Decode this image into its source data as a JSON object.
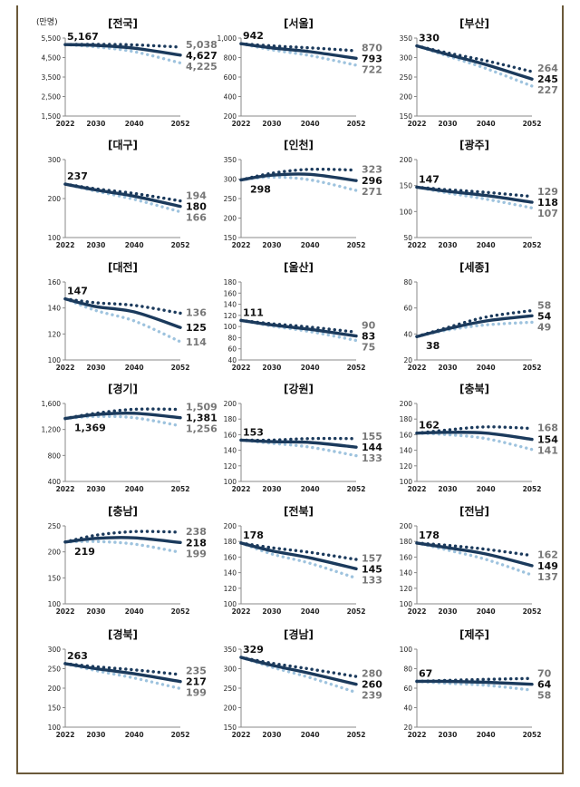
{
  "unit_label": "(만명)",
  "colors": {
    "actual": "#1b3a5c",
    "high": "#1b3a5c",
    "low": "#9ec3de",
    "label_dark": "#111111",
    "label_gray": "#777777",
    "axis": "#888888"
  },
  "chart_data": [
    {
      "type": "line",
      "title": "[전국]",
      "x": [
        2022,
        2030,
        2040,
        2052
      ],
      "xlim": [
        2022,
        2052
      ],
      "ylim": [
        1500,
        5500
      ],
      "yticks": [
        1500,
        2500,
        3500,
        4500,
        5500
      ],
      "ytick_labels": [
        "1,500",
        "2,500",
        "3,500",
        "4,500",
        "5,500"
      ],
      "start_label": "5,167",
      "series": [
        {
          "name": "high",
          "values": [
            5167,
            5180,
            5150,
            5038
          ],
          "end_label": "5,038"
        },
        {
          "name": "mid",
          "values": [
            5167,
            5130,
            4980,
            4627
          ],
          "end_label": "4,627"
        },
        {
          "name": "low",
          "values": [
            5167,
            5050,
            4800,
            4225
          ],
          "end_label": "4,225"
        }
      ]
    },
    {
      "type": "line",
      "title": "[서울]",
      "x": [
        2022,
        2030,
        2040,
        2052
      ],
      "xlim": [
        2022,
        2052
      ],
      "ylim": [
        200,
        1000
      ],
      "yticks": [
        200,
        400,
        600,
        800,
        1000
      ],
      "ytick_labels": [
        "200",
        "400",
        "600",
        "800",
        "1,000"
      ],
      "start_label": "942",
      "series": [
        {
          "name": "high",
          "values": [
            942,
            920,
            900,
            870
          ],
          "end_label": "870"
        },
        {
          "name": "mid",
          "values": [
            942,
            900,
            860,
            793
          ],
          "end_label": "793"
        },
        {
          "name": "low",
          "values": [
            942,
            880,
            820,
            722
          ],
          "end_label": "722"
        }
      ]
    },
    {
      "type": "line",
      "title": "[부산]",
      "x": [
        2022,
        2030,
        2040,
        2052
      ],
      "xlim": [
        2022,
        2052
      ],
      "ylim": [
        150,
        350
      ],
      "yticks": [
        150,
        200,
        250,
        300,
        350
      ],
      "ytick_labels": [
        "150",
        "200",
        "250",
        "300",
        "350"
      ],
      "start_label": "330",
      "series": [
        {
          "name": "high",
          "values": [
            330,
            312,
            292,
            264
          ],
          "end_label": "264"
        },
        {
          "name": "mid",
          "values": [
            330,
            308,
            282,
            245
          ],
          "end_label": "245"
        },
        {
          "name": "low",
          "values": [
            330,
            304,
            272,
            227
          ],
          "end_label": "227"
        }
      ]
    },
    {
      "type": "line",
      "title": "[대구]",
      "x": [
        2022,
        2030,
        2040,
        2052
      ],
      "xlim": [
        2022,
        2052
      ],
      "ylim": [
        100,
        300
      ],
      "yticks": [
        100,
        200,
        300
      ],
      "ytick_labels": [
        "100",
        "200",
        "300"
      ],
      "start_label": "237",
      "series": [
        {
          "name": "high",
          "values": [
            237,
            225,
            213,
            194
          ],
          "end_label": "194"
        },
        {
          "name": "mid",
          "values": [
            237,
            222,
            206,
            180
          ],
          "end_label": "180"
        },
        {
          "name": "low",
          "values": [
            237,
            219,
            198,
            166
          ],
          "end_label": "166"
        }
      ]
    },
    {
      "type": "line",
      "title": "[인천]",
      "x": [
        2022,
        2030,
        2040,
        2052
      ],
      "xlim": [
        2022,
        2052
      ],
      "ylim": [
        150,
        350
      ],
      "yticks": [
        150,
        200,
        250,
        300,
        350
      ],
      "ytick_labels": [
        "150",
        "200",
        "250",
        "300",
        "350"
      ],
      "start_label": "298",
      "series": [
        {
          "name": "high",
          "values": [
            298,
            315,
            325,
            323
          ],
          "end_label": "323"
        },
        {
          "name": "mid",
          "values": [
            298,
            310,
            312,
            296
          ],
          "end_label": "296"
        },
        {
          "name": "low",
          "values": [
            298,
            305,
            298,
            271
          ],
          "end_label": "271"
        }
      ]
    },
    {
      "type": "line",
      "title": "[광주]",
      "x": [
        2022,
        2030,
        2040,
        2052
      ],
      "xlim": [
        2022,
        2052
      ],
      "ylim": [
        50,
        200
      ],
      "yticks": [
        50,
        100,
        150,
        200
      ],
      "ytick_labels": [
        "50",
        "100",
        "150",
        "200"
      ],
      "start_label": "147",
      "series": [
        {
          "name": "high",
          "values": [
            147,
            142,
            137,
            129
          ],
          "end_label": "129"
        },
        {
          "name": "mid",
          "values": [
            147,
            139,
            131,
            118
          ],
          "end_label": "118"
        },
        {
          "name": "low",
          "values": [
            147,
            136,
            124,
            107
          ],
          "end_label": "107"
        }
      ]
    },
    {
      "type": "line",
      "title": "[대전]",
      "x": [
        2022,
        2030,
        2040,
        2052
      ],
      "xlim": [
        2022,
        2052
      ],
      "ylim": [
        100,
        160
      ],
      "yticks": [
        100,
        120,
        140,
        160
      ],
      "ytick_labels": [
        "100",
        "120",
        "140",
        "160"
      ],
      "start_label": "147",
      "series": [
        {
          "name": "high",
          "values": [
            147,
            144,
            142,
            136
          ],
          "end_label": "136"
        },
        {
          "name": "mid",
          "values": [
            147,
            141,
            137,
            125
          ],
          "end_label": "125"
        },
        {
          "name": "low",
          "values": [
            147,
            138,
            130,
            114
          ],
          "end_label": "114"
        }
      ]
    },
    {
      "type": "line",
      "title": "[울산]",
      "x": [
        2022,
        2030,
        2040,
        2052
      ],
      "xlim": [
        2022,
        2052
      ],
      "ylim": [
        40,
        180
      ],
      "yticks": [
        40,
        60,
        80,
        100,
        120,
        140,
        160,
        180
      ],
      "ytick_labels": [
        "40",
        "60",
        "80",
        "100",
        "120",
        "140",
        "160",
        "180"
      ],
      "start_label": "111",
      "series": [
        {
          "name": "high",
          "values": [
            111,
            105,
            99,
            90
          ],
          "end_label": "90"
        },
        {
          "name": "mid",
          "values": [
            111,
            103,
            95,
            83
          ],
          "end_label": "83"
        },
        {
          "name": "low",
          "values": [
            111,
            101,
            91,
            75
          ],
          "end_label": "75"
        }
      ]
    },
    {
      "type": "line",
      "title": "[세종]",
      "x": [
        2022,
        2030,
        2040,
        2052
      ],
      "xlim": [
        2022,
        2052
      ],
      "ylim": [
        20,
        80
      ],
      "yticks": [
        20,
        40,
        60,
        80
      ],
      "ytick_labels": [
        "20",
        "40",
        "60",
        "80"
      ],
      "start_label": "38",
      "series": [
        {
          "name": "high",
          "values": [
            38,
            45,
            53,
            58
          ],
          "end_label": "58"
        },
        {
          "name": "mid",
          "values": [
            38,
            44,
            50,
            54
          ],
          "end_label": "54"
        },
        {
          "name": "low",
          "values": [
            38,
            43,
            47,
            49
          ],
          "end_label": "49"
        }
      ]
    },
    {
      "type": "line",
      "title": "[경기]",
      "x": [
        2022,
        2030,
        2040,
        2052
      ],
      "xlim": [
        2022,
        2052
      ],
      "ylim": [
        400,
        1600
      ],
      "yticks": [
        400,
        800,
        1200,
        1600
      ],
      "ytick_labels": [
        "400",
        "800",
        "1,200",
        "1,600"
      ],
      "start_label": "1,369",
      "series": [
        {
          "name": "high",
          "values": [
            1369,
            1450,
            1510,
            1509
          ],
          "end_label": "1,509"
        },
        {
          "name": "mid",
          "values": [
            1369,
            1430,
            1450,
            1381
          ],
          "end_label": "1,381"
        },
        {
          "name": "low",
          "values": [
            1369,
            1400,
            1380,
            1256
          ],
          "end_label": "1,256"
        }
      ]
    },
    {
      "type": "line",
      "title": "[강원]",
      "x": [
        2022,
        2030,
        2040,
        2052
      ],
      "xlim": [
        2022,
        2052
      ],
      "ylim": [
        100,
        200
      ],
      "yticks": [
        100,
        120,
        140,
        160,
        180,
        200
      ],
      "ytick_labels": [
        "100",
        "120",
        "140",
        "160",
        "180",
        "200"
      ],
      "start_label": "153",
      "series": [
        {
          "name": "high",
          "values": [
            153,
            153,
            155,
            155
          ],
          "end_label": "155"
        },
        {
          "name": "mid",
          "values": [
            153,
            151,
            150,
            144
          ],
          "end_label": "144"
        },
        {
          "name": "low",
          "values": [
            153,
            149,
            144,
            133
          ],
          "end_label": "133"
        }
      ]
    },
    {
      "type": "line",
      "title": "[충북]",
      "x": [
        2022,
        2030,
        2040,
        2052
      ],
      "xlim": [
        2022,
        2052
      ],
      "ylim": [
        100,
        200
      ],
      "yticks": [
        100,
        120,
        140,
        160,
        180,
        200
      ],
      "ytick_labels": [
        "100",
        "120",
        "140",
        "160",
        "180",
        "200"
      ],
      "start_label": "162",
      "series": [
        {
          "name": "high",
          "values": [
            162,
            166,
            170,
            168
          ],
          "end_label": "168"
        },
        {
          "name": "mid",
          "values": [
            162,
            163,
            162,
            154
          ],
          "end_label": "154"
        },
        {
          "name": "low",
          "values": [
            162,
            160,
            155,
            141
          ],
          "end_label": "141"
        }
      ]
    },
    {
      "type": "line",
      "title": "[충남]",
      "x": [
        2022,
        2030,
        2040,
        2052
      ],
      "xlim": [
        2022,
        2052
      ],
      "ylim": [
        100,
        250
      ],
      "yticks": [
        100,
        150,
        200,
        250
      ],
      "ytick_labels": [
        "100",
        "150",
        "200",
        "250"
      ],
      "start_label": "219",
      "series": [
        {
          "name": "high",
          "values": [
            219,
            232,
            239,
            238
          ],
          "end_label": "238"
        },
        {
          "name": "mid",
          "values": [
            219,
            226,
            227,
            218
          ],
          "end_label": "218"
        },
        {
          "name": "low",
          "values": [
            219,
            220,
            215,
            199
          ],
          "end_label": "199"
        }
      ]
    },
    {
      "type": "line",
      "title": "[전북]",
      "x": [
        2022,
        2030,
        2040,
        2052
      ],
      "xlim": [
        2022,
        2052
      ],
      "ylim": [
        100,
        200
      ],
      "yticks": [
        100,
        120,
        140,
        160,
        180,
        200
      ],
      "ytick_labels": [
        "100",
        "120",
        "140",
        "160",
        "180",
        "200"
      ],
      "start_label": "178",
      "series": [
        {
          "name": "high",
          "values": [
            178,
            172,
            166,
            157
          ],
          "end_label": "157"
        },
        {
          "name": "mid",
          "values": [
            178,
            168,
            159,
            145
          ],
          "end_label": "145"
        },
        {
          "name": "low",
          "values": [
            178,
            164,
            152,
            133
          ],
          "end_label": "133"
        }
      ]
    },
    {
      "type": "line",
      "title": "[전남]",
      "x": [
        2022,
        2030,
        2040,
        2052
      ],
      "xlim": [
        2022,
        2052
      ],
      "ylim": [
        100,
        200
      ],
      "yticks": [
        100,
        120,
        140,
        160,
        180,
        200
      ],
      "ytick_labels": [
        "100",
        "120",
        "140",
        "160",
        "180",
        "200"
      ],
      "start_label": "178",
      "series": [
        {
          "name": "high",
          "values": [
            178,
            175,
            170,
            162
          ],
          "end_label": "162"
        },
        {
          "name": "mid",
          "values": [
            178,
            172,
            164,
            149
          ],
          "end_label": "149"
        },
        {
          "name": "low",
          "values": [
            178,
            169,
            157,
            137
          ],
          "end_label": "137"
        }
      ]
    },
    {
      "type": "line",
      "title": "[경북]",
      "x": [
        2022,
        2030,
        2040,
        2052
      ],
      "xlim": [
        2022,
        2052
      ],
      "ylim": [
        100,
        300
      ],
      "yticks": [
        100,
        150,
        200,
        250,
        300
      ],
      "ytick_labels": [
        "100",
        "150",
        "200",
        "250",
        "300"
      ],
      "start_label": "263",
      "series": [
        {
          "name": "high",
          "values": [
            263,
            255,
            247,
            235
          ],
          "end_label": "235"
        },
        {
          "name": "mid",
          "values": [
            263,
            250,
            237,
            217
          ],
          "end_label": "217"
        },
        {
          "name": "low",
          "values": [
            263,
            245,
            226,
            199
          ],
          "end_label": "199"
        }
      ]
    },
    {
      "type": "line",
      "title": "[경남]",
      "x": [
        2022,
        2030,
        2040,
        2052
      ],
      "xlim": [
        2022,
        2052
      ],
      "ylim": [
        150,
        350
      ],
      "yticks": [
        150,
        200,
        250,
        300,
        350
      ],
      "ytick_labels": [
        "150",
        "200",
        "250",
        "300",
        "350"
      ],
      "start_label": "329",
      "series": [
        {
          "name": "high",
          "values": [
            329,
            314,
            299,
            280
          ],
          "end_label": "280"
        },
        {
          "name": "mid",
          "values": [
            329,
            309,
            288,
            260
          ],
          "end_label": "260"
        },
        {
          "name": "low",
          "values": [
            329,
            304,
            277,
            239
          ],
          "end_label": "239"
        }
      ]
    },
    {
      "type": "line",
      "title": "[제주]",
      "x": [
        2022,
        2030,
        2040,
        2052
      ],
      "xlim": [
        2022,
        2052
      ],
      "ylim": [
        20,
        100
      ],
      "yticks": [
        20,
        40,
        60,
        80,
        100
      ],
      "ytick_labels": [
        "20",
        "40",
        "60",
        "80",
        "100"
      ],
      "start_label": "67",
      "series": [
        {
          "name": "high",
          "values": [
            67,
            68,
            69,
            70
          ],
          "end_label": "70"
        },
        {
          "name": "mid",
          "values": [
            67,
            67,
            66,
            64
          ],
          "end_label": "64"
        },
        {
          "name": "low",
          "values": [
            67,
            65,
            63,
            58
          ],
          "end_label": "58"
        }
      ]
    }
  ]
}
